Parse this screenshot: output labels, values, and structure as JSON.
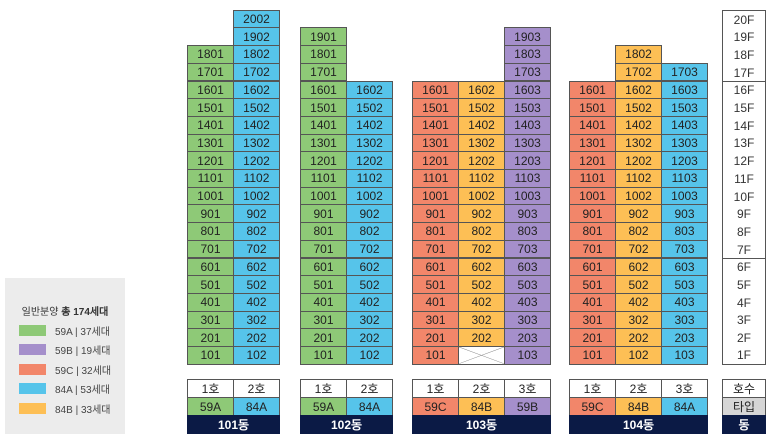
{
  "colors": {
    "59A": "#8ec977",
    "59B": "#a58fcb",
    "59C": "#f2866a",
    "84A": "#56c4ea",
    "84B": "#fdbf55",
    "header_bg": "#0b1a45",
    "legend_bg": "#ececec"
  },
  "legend": {
    "title_prefix": "일반분양",
    "title_total": "총 174세대",
    "items": [
      {
        "type": "59A",
        "text": "59A | 37세대"
      },
      {
        "type": "59B",
        "text": "59B | 19세대"
      },
      {
        "type": "59C",
        "text": "59C | 32세대"
      },
      {
        "type": "84A",
        "text": "84A | 53세대"
      },
      {
        "type": "84B",
        "text": "84B | 33세대"
      }
    ]
  },
  "floors": {
    "labels": [
      "1F",
      "2F",
      "3F",
      "4F",
      "5F",
      "6F",
      "7F",
      "8F",
      "9F",
      "10F",
      "11F",
      "12F",
      "13F",
      "14F",
      "15F",
      "16F",
      "17F",
      "18F",
      "19F",
      "20F"
    ],
    "ho_label": "호수",
    "type_label": "타입",
    "dong_label": "동"
  },
  "buildings": [
    {
      "name": "101동",
      "lines": [
        {
          "ho": "1호",
          "type": "59A",
          "max_floor": 18,
          "empty_floors": []
        },
        {
          "ho": "2호",
          "type": "84A",
          "max_floor": 20,
          "empty_floors": []
        }
      ]
    },
    {
      "name": "102동",
      "lines": [
        {
          "ho": "1호",
          "type": "59A",
          "max_floor": 19,
          "empty_floors": []
        },
        {
          "ho": "2호",
          "type": "84A",
          "max_floor": 16,
          "empty_floors": []
        }
      ]
    },
    {
      "name": "103동",
      "lines": [
        {
          "ho": "1호",
          "type": "59C",
          "max_floor": 16,
          "empty_floors": []
        },
        {
          "ho": "2호",
          "type": "84B",
          "max_floor": 16,
          "empty_floors": [
            1
          ]
        },
        {
          "ho": "3호",
          "type": "59B",
          "max_floor": 19,
          "empty_floors": []
        }
      ]
    },
    {
      "name": "104동",
      "lines": [
        {
          "ho": "1호",
          "type": "59C",
          "max_floor": 16,
          "empty_floors": []
        },
        {
          "ho": "2호",
          "type": "84B",
          "max_floor": 18,
          "empty_floors": []
        },
        {
          "ho": "3호",
          "type": "84A",
          "max_floor": 17,
          "empty_floors": []
        }
      ]
    }
  ]
}
